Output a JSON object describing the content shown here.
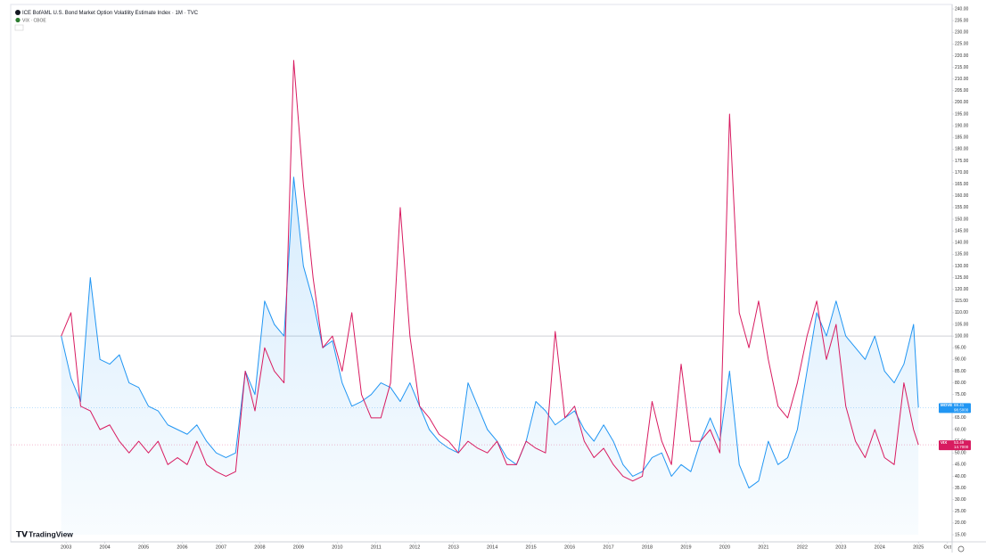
{
  "chart_data": {
    "type": "line",
    "title": "ICE BofAML U.S. Bond Market Option Volatility Estimate Index · 1M · TVC",
    "legend_entry": "VIX · CBOE",
    "logo": "TradingView",
    "reference_line": 100,
    "xlim": [
      2001.57,
      2025.87
    ],
    "ylim": [
      15,
      240
    ],
    "xticks": [
      2003,
      2004,
      2005,
      2006,
      2007,
      2008,
      2009,
      2010,
      2011,
      2012,
      2013,
      2014,
      2015,
      2016,
      2017,
      2018,
      2019,
      2020,
      2021,
      2022,
      2023,
      2024,
      2025,
      {
        "value": 2025.75,
        "label": "Oct"
      }
    ],
    "yticks": [
      {
        "value": 15,
        "label": "15.00"
      },
      {
        "value": 20,
        "label": "20.00"
      },
      {
        "value": 25,
        "label": "25.00"
      },
      {
        "value": 30,
        "label": "30.00"
      },
      {
        "value": 35,
        "label": "35.00"
      },
      {
        "value": 40,
        "label": "40.00"
      },
      {
        "value": 45,
        "label": "45.00"
      },
      {
        "value": 50,
        "label": "50.00"
      },
      {
        "value": 55,
        "label": "55.00"
      },
      {
        "value": 60,
        "label": "60.00"
      },
      {
        "value": 65,
        "label": "65.00"
      },
      {
        "value": 70,
        "label": "70.00"
      },
      {
        "value": 75,
        "label": "75.00"
      },
      {
        "value": 80,
        "label": "80.00"
      },
      {
        "value": 85,
        "label": "85.00"
      },
      {
        "value": 90,
        "label": "90.00"
      },
      {
        "value": 95,
        "label": "95.00"
      },
      {
        "value": 100,
        "label": "100.00"
      },
      {
        "value": 105,
        "label": "105.00"
      },
      {
        "value": 110,
        "label": "110.00"
      },
      {
        "value": 115,
        "label": "115.00"
      },
      {
        "value": 120,
        "label": "120.00"
      },
      {
        "value": 125,
        "label": "125.00"
      },
      {
        "value": 130,
        "label": "130.00"
      },
      {
        "value": 135,
        "label": "135.00"
      },
      {
        "value": 140,
        "label": "140.00"
      },
      {
        "value": 145,
        "label": "145.00"
      },
      {
        "value": 150,
        "label": "150.00"
      },
      {
        "value": 155,
        "label": "155.00"
      },
      {
        "value": 160,
        "label": "160.00"
      },
      {
        "value": 165,
        "label": "165.00"
      },
      {
        "value": 170,
        "label": "170.00"
      },
      {
        "value": 175,
        "label": "175.00"
      },
      {
        "value": 180,
        "label": "180.00"
      },
      {
        "value": 185,
        "label": "185.00"
      },
      {
        "value": 190,
        "label": "190.00"
      },
      {
        "value": 195,
        "label": "195.00"
      },
      {
        "value": 200,
        "label": "200.00"
      },
      {
        "value": 205,
        "label": "205.00"
      },
      {
        "value": 210,
        "label": "210.00"
      },
      {
        "value": 215,
        "label": "215.00"
      },
      {
        "value": 220,
        "label": "220.00"
      },
      {
        "value": 225,
        "label": "225.00"
      },
      {
        "value": 230,
        "label": "230.00"
      },
      {
        "value": 235,
        "label": "235.00"
      },
      {
        "value": 240,
        "label": "240.00"
      }
    ],
    "x": [
      2002.875,
      2003.125,
      2003.375,
      2003.625,
      2003.875,
      2004.125,
      2004.375,
      2004.625,
      2004.875,
      2005.125,
      2005.375,
      2005.625,
      2005.875,
      2006.125,
      2006.375,
      2006.625,
      2006.875,
      2007.125,
      2007.375,
      2007.625,
      2007.875,
      2008.125,
      2008.375,
      2008.625,
      2008.875,
      2009.125,
      2009.375,
      2009.625,
      2009.875,
      2010.125,
      2010.375,
      2010.625,
      2010.875,
      2011.125,
      2011.375,
      2011.625,
      2011.875,
      2012.125,
      2012.375,
      2012.625,
      2012.875,
      2013.125,
      2013.375,
      2013.625,
      2013.875,
      2014.125,
      2014.375,
      2014.625,
      2014.875,
      2015.125,
      2015.375,
      2015.625,
      2015.875,
      2016.125,
      2016.375,
      2016.625,
      2016.875,
      2017.125,
      2017.375,
      2017.625,
      2017.875,
      2018.125,
      2018.375,
      2018.625,
      2018.875,
      2019.125,
      2019.375,
      2019.625,
      2019.875,
      2020.125,
      2020.375,
      2020.625,
      2020.875,
      2021.125,
      2021.375,
      2021.625,
      2021.875,
      2022.125,
      2022.375,
      2022.625,
      2022.875,
      2023.125,
      2023.375,
      2023.625,
      2023.875,
      2024.125,
      2024.375,
      2024.625,
      2024.875,
      2025.0
    ],
    "series": [
      {
        "name": "MOVE",
        "color": "#2196f3",
        "area": true,
        "last_label": "69.41",
        "last_price": {
          "value": 98.5,
          "label": "98.5000"
        },
        "values": [
          100,
          82,
          72,
          125,
          90,
          88,
          92,
          80,
          78,
          70,
          68,
          62,
          60,
          58,
          62,
          55,
          50,
          48,
          50,
          85,
          75,
          115,
          105,
          100,
          168,
          130,
          115,
          95,
          98,
          80,
          70,
          72,
          75,
          80,
          78,
          72,
          80,
          70,
          60,
          55,
          52,
          50,
          80,
          70,
          60,
          55,
          48,
          45,
          55,
          72,
          68,
          62,
          65,
          68,
          60,
          55,
          62,
          55,
          45,
          40,
          42,
          48,
          50,
          40,
          45,
          42,
          55,
          65,
          55,
          85,
          45,
          35,
          38,
          55,
          45,
          48,
          60,
          85,
          110,
          100,
          115,
          100,
          95,
          90,
          100,
          85,
          80,
          88,
          105,
          69.41
        ]
      },
      {
        "name": "VIX",
        "color": "#d81b60",
        "area": false,
        "last_label": "53.49",
        "last_price": {
          "value": 14.7,
          "label": "14.7000"
        },
        "values": [
          100,
          110,
          70,
          68,
          60,
          62,
          55,
          50,
          55,
          50,
          55,
          45,
          48,
          45,
          55,
          45,
          42,
          40,
          42,
          85,
          68,
          95,
          85,
          80,
          218,
          165,
          125,
          95,
          100,
          85,
          110,
          75,
          65,
          65,
          80,
          155,
          100,
          70,
          65,
          58,
          55,
          50,
          55,
          52,
          50,
          55,
          45,
          45,
          55,
          52,
          50,
          102,
          65,
          70,
          55,
          48,
          52,
          45,
          40,
          38,
          40,
          72,
          55,
          45,
          88,
          55,
          55,
          60,
          50,
          195,
          110,
          95,
          115,
          90,
          70,
          65,
          80,
          100,
          115,
          90,
          105,
          70,
          55,
          48,
          60,
          48,
          45,
          80,
          60,
          53.49
        ]
      }
    ]
  }
}
